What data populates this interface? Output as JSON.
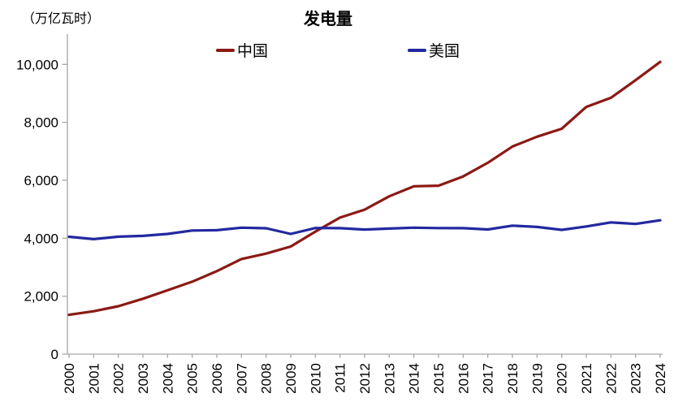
{
  "header": {
    "unit_label": "（万亿瓦时）",
    "title": "发电量"
  },
  "legend": {
    "items": [
      {
        "label": "中国"
      },
      {
        "label": "美国"
      }
    ]
  },
  "chart_data": {
    "type": "line",
    "title": "发电量",
    "unit": "万亿瓦时",
    "x": [
      2000,
      2001,
      2002,
      2003,
      2004,
      2005,
      2006,
      2007,
      2008,
      2009,
      2010,
      2011,
      2012,
      2013,
      2014,
      2015,
      2016,
      2017,
      2018,
      2019,
      2020,
      2021,
      2022,
      2023,
      2024
    ],
    "series": [
      {
        "name": "中国",
        "color": "#8B1A14",
        "values": [
          1356,
          1481,
          1654,
          1911,
          2203,
          2500,
          2866,
          3282,
          3470,
          3715,
          4228,
          4713,
          4988,
          5447,
          5795,
          5815,
          6133,
          6604,
          7166,
          7504,
          7779,
          8534,
          8849,
          9456,
          10087
        ]
      },
      {
        "name": "美国",
        "color": "#2328A0",
        "values": [
          4052,
          3970,
          4055,
          4081,
          4148,
          4268,
          4277,
          4364,
          4344,
          4150,
          4354,
          4348,
          4300,
          4333,
          4364,
          4352,
          4347,
          4303,
          4434,
          4391,
          4288,
          4406,
          4547,
          4494,
          4620
        ]
      }
    ],
    "ylim": [
      0,
      10000
    ],
    "yticks": [
      0,
      2000,
      4000,
      6000,
      8000,
      10000
    ],
    "ytick_labels": [
      "0",
      "2,000",
      "4,000",
      "6,000",
      "8,000",
      "10,000"
    ],
    "grid": false,
    "legend_position": "top",
    "axis_color": "#A6A6A6",
    "text_color": "#000000"
  }
}
